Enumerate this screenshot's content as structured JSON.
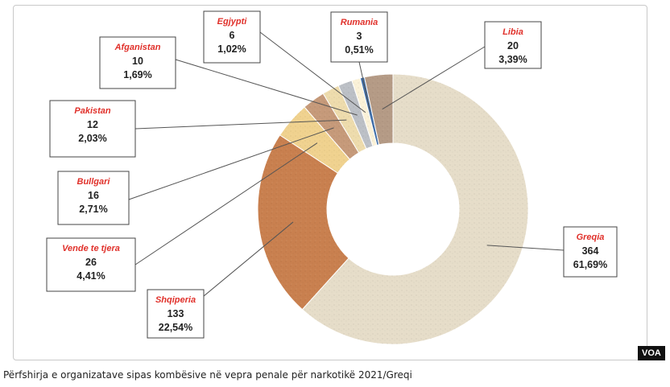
{
  "chart_data": {
    "type": "pie",
    "donut": true,
    "categories": [
      "Greqia",
      "Shqiperia",
      "Vende te tjera",
      "Bullgari",
      "Pakistan",
      "Afganistan",
      "Egjypti",
      "Rumania",
      "Libia"
    ],
    "values": [
      364,
      133,
      26,
      16,
      12,
      10,
      6,
      3,
      20
    ],
    "percent_labels": [
      "61,69%",
      "22,54%",
      "4,41%",
      "2,71%",
      "2,03%",
      "1,69%",
      "1,02%",
      "0,51%",
      "3,39%"
    ],
    "colors": [
      "#e6ddc9",
      "#c9804f",
      "#f0d28f",
      "#c69a7a",
      "#eedcad",
      "#bcc0c6",
      "#fbf2d8",
      "#3f6ea8",
      "#b59b86"
    ]
  },
  "watermark": "VOA",
  "caption": "Përfshirja e organizatave sipas kombësive në vepra penale për narkotikë 2021/Greqi"
}
